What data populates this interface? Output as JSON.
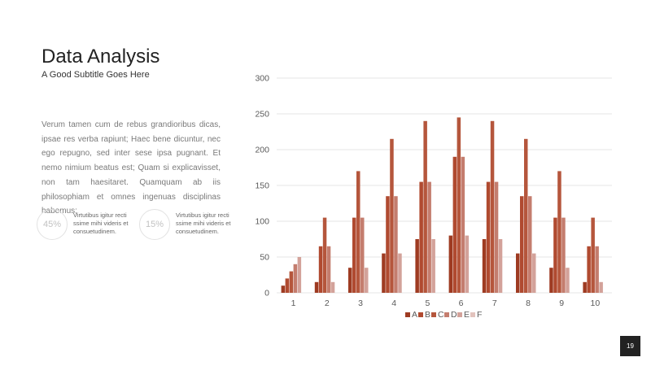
{
  "header": {
    "title": "Data Analysis",
    "subtitle": "A Good Subtitle Goes Here"
  },
  "body_text": "Verum tamen cum de rebus grandioribus dicas, ipsae res verba rapiunt; Haec bene dicuntur, nec ego repugno, sed inter sese ipsa pugnant. Et nemo nimium beatus est; Quam si explicavisset, non tam haesitaret. Quamquam ab iis philosophiam et omnes ingenuas disciplinas habemus;",
  "stats": [
    {
      "value": "45%",
      "text": "Virtutibus igitur recti ssime mihi videris et consuetudinem."
    },
    {
      "value": "15%",
      "text": "Virtutibus igitur recti ssime mihi videris et consuetudinem."
    }
  ],
  "page_number": "19",
  "colors": {
    "A": "#9e3b22",
    "B": "#b04a30",
    "C": "#b5563c",
    "D": "#c47d6e",
    "E": "#d3a29a",
    "F": "#e2c3bd",
    "grid": "#e6e6e6",
    "axis_text": "#595959"
  },
  "chart_data": {
    "type": "bar",
    "categories": [
      "1",
      "2",
      "3",
      "4",
      "5",
      "6",
      "7",
      "8",
      "9",
      "10"
    ],
    "series": [
      {
        "name": "A",
        "values": [
          10,
          15,
          35,
          55,
          75,
          80,
          75,
          55,
          35,
          15
        ]
      },
      {
        "name": "B",
        "values": [
          20,
          65,
          105,
          135,
          155,
          190,
          155,
          135,
          105,
          65
        ]
      },
      {
        "name": "C",
        "values": [
          30,
          105,
          170,
          215,
          240,
          245,
          240,
          215,
          170,
          105
        ]
      },
      {
        "name": "D",
        "values": [
          40,
          65,
          105,
          135,
          155,
          190,
          155,
          135,
          105,
          65
        ]
      },
      {
        "name": "E",
        "values": [
          50,
          15,
          35,
          55,
          75,
          80,
          75,
          55,
          35,
          15
        ]
      },
      {
        "name": "F",
        "values": [
          0,
          0,
          0,
          0,
          0,
          0,
          0,
          0,
          0,
          0
        ]
      }
    ],
    "yticks": [
      "0",
      "50",
      "100",
      "150",
      "200",
      "250",
      "300"
    ],
    "ylim": [
      0,
      300
    ],
    "grid": true,
    "legend": "bottom"
  }
}
